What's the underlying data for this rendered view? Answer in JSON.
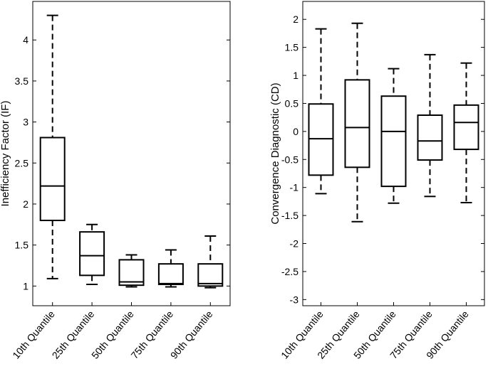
{
  "chart_data": [
    {
      "type": "box",
      "ylabel": "Inefficiency Factor (IF)",
      "categories": [
        "10th Quantile",
        "25th Quantile",
        "50th Quantile",
        "75th Quantile",
        "90th Quantile"
      ],
      "boxes": [
        {
          "low": 1.09,
          "q1": 1.8,
          "median": 2.22,
          "q3": 2.81,
          "high": 4.3
        },
        {
          "low": 1.02,
          "q1": 1.13,
          "median": 1.37,
          "q3": 1.66,
          "high": 1.75
        },
        {
          "low": 0.99,
          "q1": 1.01,
          "median": 1.05,
          "q3": 1.32,
          "high": 1.38
        },
        {
          "low": 0.99,
          "q1": 1.02,
          "median": 1.03,
          "q3": 1.27,
          "high": 1.44
        },
        {
          "low": 0.98,
          "q1": 1.0,
          "median": 1.03,
          "q3": 1.27,
          "high": 1.61
        }
      ],
      "ylim": [
        0.76,
        4.47
      ],
      "yticks": [
        1,
        1.5,
        2,
        2.5,
        3,
        3.5,
        4
      ],
      "color": "#000000"
    },
    {
      "type": "box",
      "ylabel": "Convergence Diagnostic (CD)",
      "categories": [
        "10th Quantile",
        "25th Quantile",
        "50th Quantile",
        "75th Quantile",
        "90th Quantile"
      ],
      "boxes": [
        {
          "low": -1.11,
          "q1": -0.78,
          "median": -0.13,
          "q3": 0.49,
          "high": 1.83
        },
        {
          "low": -1.61,
          "q1": -0.64,
          "median": 0.07,
          "q3": 0.92,
          "high": 1.93
        },
        {
          "low": -1.28,
          "q1": -0.98,
          "median": 0.0,
          "q3": 0.63,
          "high": 1.12
        },
        {
          "low": -1.16,
          "q1": -0.51,
          "median": -0.17,
          "q3": 0.29,
          "high": 1.37
        },
        {
          "low": -1.27,
          "q1": -0.32,
          "median": 0.16,
          "q3": 0.47,
          "high": 1.22
        }
      ],
      "ylim": [
        -3.11,
        2.32
      ],
      "yticks": [
        -3,
        -2.5,
        -2,
        -1.5,
        -1,
        -0.5,
        0,
        0.5,
        1,
        1.5,
        2
      ],
      "color": "#000000"
    }
  ]
}
